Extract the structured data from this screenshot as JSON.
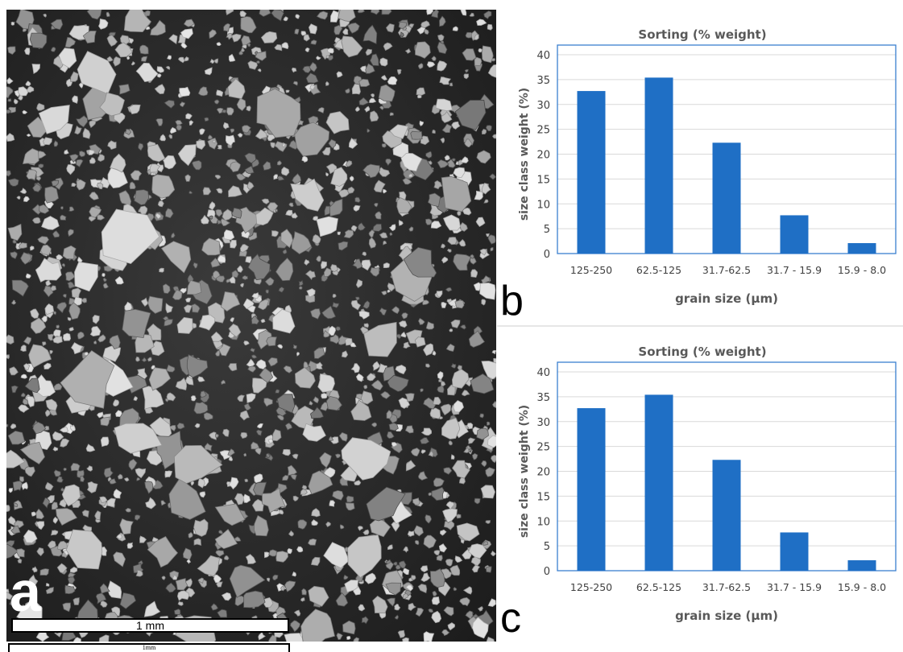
{
  "panels": {
    "a": {
      "letter": "a",
      "scale_label": "1 mm",
      "scale_label_small": "1mm"
    },
    "b": {
      "letter": "b"
    },
    "c": {
      "letter": "c"
    }
  },
  "colors": {
    "bar": "#1f6fc5",
    "plot_border": "#3a7fd0",
    "grid": "#d9d9d9",
    "text": "#404040",
    "title": "#595959"
  },
  "chart_data": [
    {
      "type": "bar",
      "title": "Sorting (% weight)",
      "xlabel": "grain size (µm)",
      "ylabel": "size class weight (%)",
      "categories": [
        "125-250",
        "62.5-125",
        "31.7-62.5",
        "31.7 - 15.9",
        "15.9 - 8.0"
      ],
      "values": [
        32.7,
        35.4,
        22.3,
        7.7,
        2.1
      ],
      "ylim": [
        0,
        40
      ],
      "yticks": [
        0,
        5,
        10,
        15,
        20,
        25,
        30,
        35,
        40
      ],
      "grid": true,
      "legend": "none"
    },
    {
      "type": "bar",
      "title": "Sorting (% weight)",
      "xlabel": "grain size (µm)",
      "ylabel": "size class weight (%)",
      "categories": [
        "125-250",
        "62.5-125",
        "31.7-62.5",
        "31.7 - 15.9",
        "15.9 - 8.0"
      ],
      "values": [
        32.7,
        35.4,
        22.3,
        7.7,
        2.1
      ],
      "ylim": [
        0,
        40
      ],
      "yticks": [
        0,
        5,
        10,
        15,
        20,
        25,
        30,
        35,
        40
      ],
      "grid": true,
      "legend": "none"
    }
  ]
}
